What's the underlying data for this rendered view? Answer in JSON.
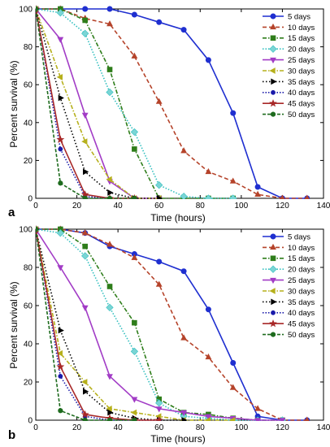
{
  "colors": {
    "5 days": "#1f2fd0",
    "10 days": "#b5432a",
    "15 days": "#2e7d1a",
    "20 days": "#33bfbf",
    "25 days": "#a23cc6",
    "30 days": "#b6b01c",
    "35 days": "#000000",
    "40 days": "#1a1aaa",
    "45 days": "#a82828",
    "50 days": "#1e6b1e"
  },
  "chart_data": [
    {
      "type": "line",
      "panel": "a",
      "xlabel": "Time (hours)",
      "ylabel": "Percent survival (%)",
      "xlim": [
        0,
        140
      ],
      "ylim": [
        0,
        100
      ],
      "xticks": [
        0,
        20,
        40,
        60,
        80,
        100,
        120,
        140
      ],
      "yticks": [
        0,
        20,
        40,
        60,
        80,
        100
      ],
      "grid": false,
      "legend": "top-right",
      "series": [
        {
          "name": "5 days",
          "x": [
            0,
            12,
            24,
            36,
            48,
            60,
            72,
            84,
            96,
            108,
            120,
            132
          ],
          "y": [
            100,
            100,
            100,
            100,
            97,
            93,
            89,
            73,
            45,
            6,
            0,
            0
          ]
        },
        {
          "name": "10 days",
          "x": [
            0,
            12,
            24,
            36,
            48,
            60,
            72,
            84,
            96,
            108,
            120,
            132
          ],
          "y": [
            100,
            100,
            95,
            92,
            75,
            51,
            25,
            14,
            9,
            2,
            0,
            0
          ]
        },
        {
          "name": "15 days",
          "x": [
            0,
            12,
            24,
            36,
            48,
            60,
            72,
            84,
            96
          ],
          "y": [
            100,
            100,
            94,
            68,
            26,
            0,
            0,
            0,
            0
          ]
        },
        {
          "name": "20 days",
          "x": [
            0,
            12,
            24,
            36,
            48,
            60,
            72,
            84,
            96
          ],
          "y": [
            100,
            98,
            87,
            56,
            35,
            7,
            1,
            0,
            0
          ]
        },
        {
          "name": "25 days",
          "x": [
            0,
            12,
            24,
            36,
            48,
            60
          ],
          "y": [
            100,
            84,
            44,
            9,
            0,
            0
          ]
        },
        {
          "name": "30 days",
          "x": [
            0,
            12,
            24,
            36,
            48,
            60
          ],
          "y": [
            100,
            64,
            30,
            10,
            0,
            0
          ]
        },
        {
          "name": "35 days",
          "x": [
            0,
            12,
            24,
            36,
            48,
            60
          ],
          "y": [
            100,
            53,
            14,
            3,
            0,
            0
          ]
        },
        {
          "name": "40 days",
          "x": [
            0,
            12,
            24,
            36,
            48
          ],
          "y": [
            100,
            26,
            1,
            0,
            0
          ]
        },
        {
          "name": "45 days",
          "x": [
            0,
            12,
            24,
            36,
            48
          ],
          "y": [
            100,
            31,
            2,
            0,
            0
          ]
        },
        {
          "name": "50 days",
          "x": [
            0,
            12,
            24,
            36,
            48
          ],
          "y": [
            100,
            8,
            0,
            0,
            0
          ]
        }
      ]
    },
    {
      "type": "line",
      "panel": "b",
      "xlabel": "Time (hours)",
      "ylabel": "Percent survival (%)",
      "xlim": [
        0,
        140
      ],
      "ylim": [
        0,
        100
      ],
      "xticks": [
        0,
        20,
        40,
        60,
        80,
        100,
        120,
        140
      ],
      "yticks": [
        0,
        20,
        40,
        60,
        80,
        100
      ],
      "grid": false,
      "legend": "top-right",
      "series": [
        {
          "name": "5 days",
          "x": [
            0,
            12,
            24,
            36,
            48,
            60,
            72,
            84,
            96,
            108,
            120,
            132
          ],
          "y": [
            100,
            100,
            98,
            91,
            87,
            83,
            78,
            58,
            30,
            2,
            0,
            0
          ]
        },
        {
          "name": "10 days",
          "x": [
            0,
            12,
            24,
            36,
            48,
            60,
            72,
            84,
            96,
            108,
            120,
            132
          ],
          "y": [
            100,
            100,
            98,
            92,
            85,
            71,
            43,
            33,
            17,
            6,
            0,
            0
          ]
        },
        {
          "name": "15 days",
          "x": [
            0,
            12,
            24,
            36,
            48,
            60,
            72,
            84,
            96,
            108,
            120
          ],
          "y": [
            100,
            100,
            91,
            70,
            51,
            11,
            4,
            3,
            1,
            0,
            0
          ]
        },
        {
          "name": "20 days",
          "x": [
            0,
            12,
            24,
            36,
            48,
            60,
            72,
            84,
            96,
            108,
            120
          ],
          "y": [
            100,
            98,
            86,
            59,
            36,
            9,
            2,
            1,
            0,
            0,
            0
          ]
        },
        {
          "name": "25 days",
          "x": [
            0,
            12,
            24,
            36,
            48,
            60,
            72,
            84,
            96,
            108,
            120
          ],
          "y": [
            100,
            80,
            59,
            23,
            11,
            6,
            4,
            2,
            1,
            0,
            0
          ]
        },
        {
          "name": "30 days",
          "x": [
            0,
            12,
            24,
            36,
            48,
            60,
            72,
            84,
            96
          ],
          "y": [
            100,
            35,
            20,
            6,
            4,
            2,
            0,
            0,
            0
          ]
        },
        {
          "name": "35 days",
          "x": [
            0,
            12,
            24,
            36,
            48,
            60,
            72
          ],
          "y": [
            100,
            47,
            15,
            4,
            1,
            0,
            0
          ]
        },
        {
          "name": "40 days",
          "x": [
            0,
            12,
            24,
            36,
            48,
            60
          ],
          "y": [
            100,
            23,
            2,
            0,
            0,
            0
          ]
        },
        {
          "name": "45 days",
          "x": [
            0,
            12,
            24,
            36,
            48,
            60
          ],
          "y": [
            100,
            28,
            3,
            1,
            0,
            0
          ]
        },
        {
          "name": "50 days",
          "x": [
            0,
            12,
            24,
            36,
            48
          ],
          "y": [
            100,
            5,
            0,
            0,
            0
          ]
        }
      ]
    }
  ]
}
